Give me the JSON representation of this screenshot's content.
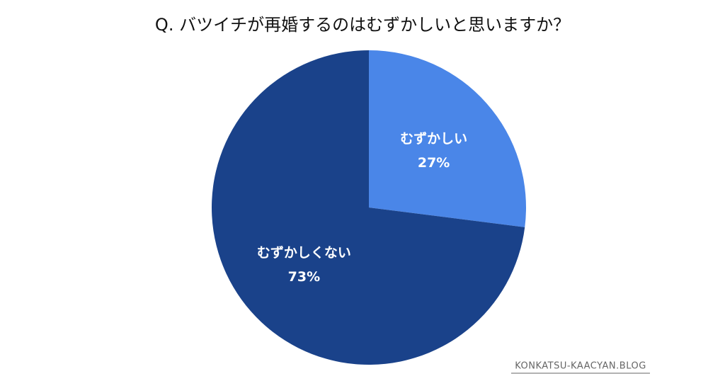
{
  "chart_data": {
    "type": "pie",
    "title": "Q. バツイチが再婚するのはむずかしいと思いますか？",
    "categories": [
      "むずかしい",
      "むずかしくない"
    ],
    "values": [
      27,
      73
    ],
    "value_labels": [
      "27%",
      "73%"
    ],
    "colors": [
      "#4a86e8",
      "#1a428a"
    ],
    "watermark": "KONKATSU-KAACYAN.BLOG"
  }
}
